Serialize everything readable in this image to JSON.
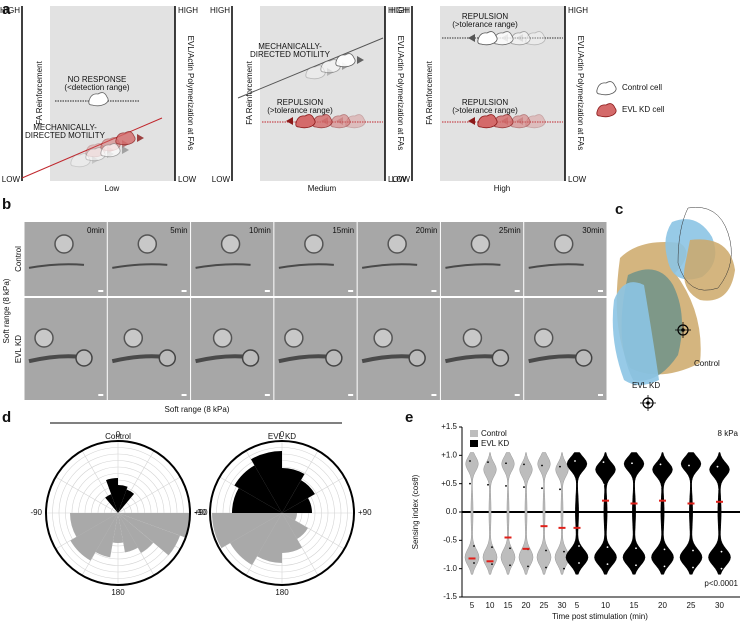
{
  "panel_a": {
    "label": "a",
    "subpanels": [
      {
        "left_high": "HIGH",
        "left_low": "LOW",
        "left_axis": "FA Reinforcement",
        "right_high": "HIGH",
        "right_low": "LOW",
        "right_axis": "EVL/Actin Polymerization at FAs",
        "x_label": "Low",
        "annotations": [
          {
            "lines": [
              "NO RESPONSE",
              "(<detection range)"
            ],
            "color": "#111111"
          },
          {
            "lines": [
              "MECHANICALLY-",
              "DIRECTED MOTILITY"
            ],
            "color": "#c0272d"
          }
        ]
      },
      {
        "left_high": "HIGH",
        "left_low": "LOW",
        "left_axis": "FA Reinforcement",
        "right_high": "HIGH",
        "right_low": "LOW",
        "right_axis": "EVL/Actin Polymerization at FAs",
        "x_label": "Medium",
        "annotations": [
          {
            "lines": [
              "MECHANICALLY-",
              "DIRECTED MOTILITY"
            ],
            "color": "#111111"
          },
          {
            "lines": [
              "REPULSION",
              "(>tolerance range)"
            ],
            "color": "#c0272d"
          }
        ]
      },
      {
        "left_high": "HIGH",
        "left_low": "LOW",
        "left_axis": "FA Reinforcement",
        "right_high": "HIGH",
        "right_low": "LOW",
        "right_axis": "EVL/Actin Polymerization at FAs",
        "x_label": "High",
        "annotations": [
          {
            "lines": [
              "REPULSION",
              "(>tolerance range)"
            ],
            "color": "#111111"
          },
          {
            "lines": [
              "REPULSION",
              "(>tolerance range)"
            ],
            "color": "#c0272d"
          }
        ]
      }
    ],
    "legend": [
      "Control cell",
      "EVL KD cell"
    ]
  },
  "panel_b": {
    "label": "b",
    "row_group": "Soft range (8 kPa)",
    "rows": [
      "Control",
      "EVL KD"
    ],
    "times": [
      "0min",
      "5min",
      "10min",
      "15min",
      "20min",
      "25min",
      "30min"
    ]
  },
  "panel_c": {
    "label": "c",
    "labels": [
      "Control",
      "EVL KD"
    ]
  },
  "panel_d": {
    "label": "d",
    "title": "Soft range (8 kPa)",
    "plots": [
      "Control",
      "EVL KD"
    ],
    "angles": [
      "0",
      "+90",
      "180",
      "-90"
    ]
  },
  "panel_e": {
    "label": "e",
    "y_label": "Sensing index (cosθ)",
    "x_label": "Time post stimulation (min)",
    "condition": "8 kPa",
    "p_value": "p<0.0001",
    "ylim": [
      -1.5,
      1.5
    ],
    "yticks": [
      {
        "value": 1.5,
        "label": "+1.5"
      },
      {
        "value": 1.0,
        "label": "+1.0"
      },
      {
        "value": 0.5,
        "label": "+0.5"
      },
      {
        "value": 0,
        "label": "0.0"
      },
      {
        "value": -0.5,
        "label": "-0.5"
      },
      {
        "value": -1.0,
        "label": "-1.0"
      },
      {
        "value": -1.5,
        "label": "-1.5"
      }
    ],
    "times": [
      5,
      10,
      15,
      20,
      25,
      30
    ],
    "groups": [
      {
        "name": "Control",
        "color": "#bdbdbd",
        "medians": [
          -0.82,
          -0.87,
          -0.45,
          -0.65,
          -0.25,
          -0.28
        ]
      },
      {
        "name": "EVL KD",
        "color": "#000000",
        "medians": [
          -0.28,
          0.2,
          0.15,
          0.2,
          0.15,
          0.18
        ]
      }
    ]
  }
}
